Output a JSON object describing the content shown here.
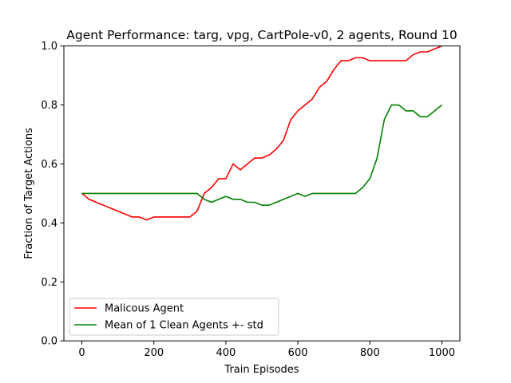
{
  "chart_data": {
    "type": "line",
    "title": "Agent Performance: targ, vpg, CartPole-v0, 2 agents, Round 10",
    "xlabel": "Train Episodes",
    "ylabel": "Fraction of Target Actions",
    "xlim": [
      -50,
      1050
    ],
    "ylim": [
      0,
      1
    ],
    "xticks": [
      0,
      200,
      400,
      600,
      800,
      1000
    ],
    "yticks": [
      0.0,
      0.2,
      0.4,
      0.6,
      0.8,
      1.0
    ],
    "xtick_labels": [
      "0",
      "200",
      "400",
      "600",
      "800",
      "1000"
    ],
    "ytick_labels": [
      "0.0",
      "0.2",
      "0.4",
      "0.6",
      "0.8",
      "1.0"
    ],
    "grid": false,
    "legend_position": "lower-left",
    "series": [
      {
        "name": "Malicous Agent",
        "color": "#ff0000",
        "x": [
          0,
          20,
          40,
          60,
          80,
          100,
          120,
          140,
          160,
          180,
          200,
          220,
          240,
          260,
          280,
          300,
          320,
          340,
          360,
          380,
          400,
          420,
          440,
          460,
          480,
          500,
          520,
          540,
          560,
          580,
          600,
          620,
          640,
          660,
          680,
          700,
          720,
          740,
          760,
          780,
          800,
          820,
          840,
          860,
          880,
          900,
          920,
          940,
          960,
          980,
          1000
        ],
        "y": [
          0.5,
          0.48,
          0.47,
          0.46,
          0.45,
          0.44,
          0.43,
          0.42,
          0.42,
          0.41,
          0.42,
          0.42,
          0.42,
          0.42,
          0.42,
          0.42,
          0.44,
          0.5,
          0.52,
          0.55,
          0.55,
          0.6,
          0.58,
          0.6,
          0.62,
          0.62,
          0.63,
          0.65,
          0.68,
          0.75,
          0.78,
          0.8,
          0.82,
          0.86,
          0.88,
          0.92,
          0.95,
          0.95,
          0.96,
          0.96,
          0.95,
          0.95,
          0.95,
          0.95,
          0.95,
          0.95,
          0.97,
          0.98,
          0.98,
          0.99,
          1.0
        ]
      },
      {
        "name": "Mean of 1 Clean Agents +- std",
        "color": "#008000",
        "x": [
          0,
          20,
          40,
          60,
          80,
          100,
          120,
          140,
          160,
          180,
          200,
          220,
          240,
          260,
          280,
          300,
          320,
          340,
          360,
          380,
          400,
          420,
          440,
          460,
          480,
          500,
          520,
          540,
          560,
          580,
          600,
          620,
          640,
          660,
          680,
          700,
          720,
          740,
          760,
          780,
          800,
          820,
          840,
          860,
          880,
          900,
          920,
          940,
          960,
          980,
          1000
        ],
        "y": [
          0.5,
          0.5,
          0.5,
          0.5,
          0.5,
          0.5,
          0.5,
          0.5,
          0.5,
          0.5,
          0.5,
          0.5,
          0.5,
          0.5,
          0.5,
          0.5,
          0.5,
          0.48,
          0.47,
          0.48,
          0.49,
          0.48,
          0.48,
          0.47,
          0.47,
          0.46,
          0.46,
          0.47,
          0.48,
          0.49,
          0.5,
          0.49,
          0.5,
          0.5,
          0.5,
          0.5,
          0.5,
          0.5,
          0.5,
          0.52,
          0.55,
          0.62,
          0.75,
          0.8,
          0.8,
          0.78,
          0.78,
          0.76,
          0.76,
          0.78,
          0.8
        ]
      }
    ]
  }
}
